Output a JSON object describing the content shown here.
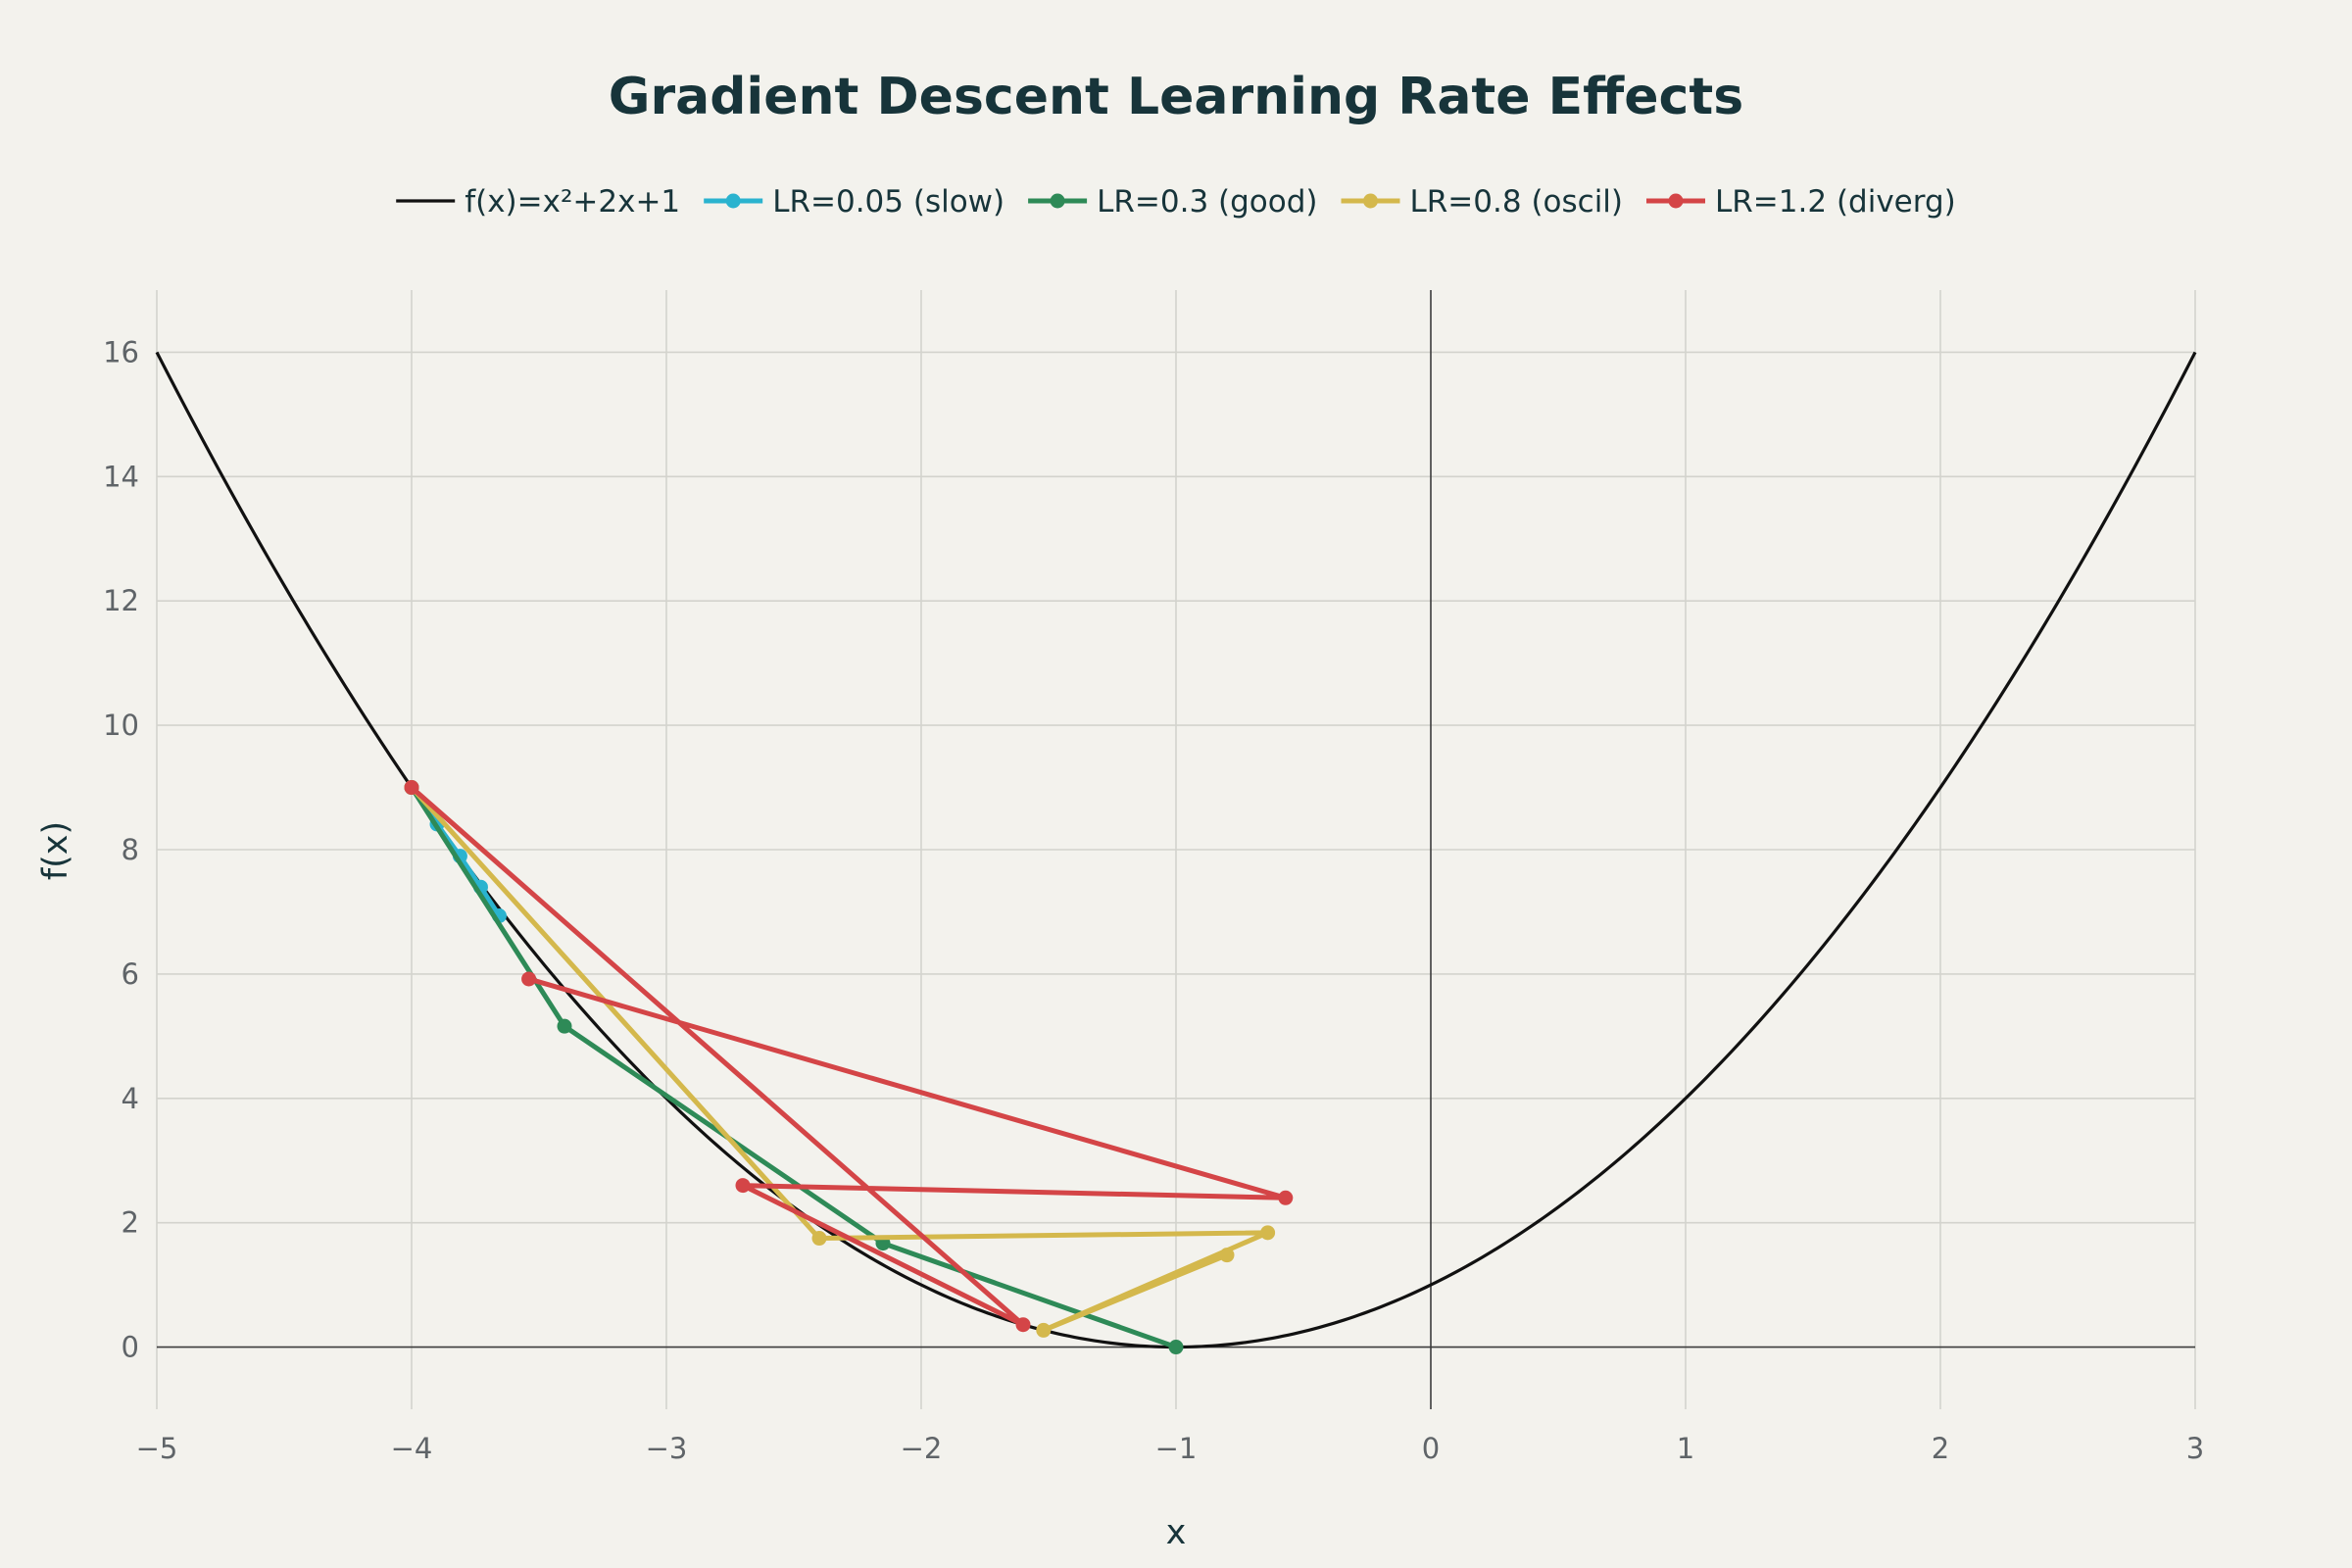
{
  "chart_data": {
    "type": "line",
    "title": "Gradient Descent Learning Rate Effects",
    "xlabel": "x",
    "ylabel": "f(x)",
    "xlim": [
      -5,
      3
    ],
    "ylim": [
      -1,
      17
    ],
    "x_ticks": [
      -5,
      -4,
      -3,
      -2,
      -1,
      0,
      1,
      2,
      3
    ],
    "x_tick_labels": [
      "−5",
      "−4",
      "−3",
      "−2",
      "−1",
      "0",
      "1",
      "2",
      "3"
    ],
    "y_ticks": [
      0,
      2,
      4,
      6,
      8,
      10,
      12,
      14,
      16
    ],
    "y_tick_labels": [
      "0",
      "2",
      "4",
      "6",
      "8",
      "10",
      "12",
      "14",
      "16"
    ],
    "grid": true,
    "legend_position": "top-center",
    "function": {
      "name": "f(x)=x²+2x+1",
      "color": "#111111",
      "x_range": [
        -5,
        3
      ]
    },
    "series": [
      {
        "name": "LR=0.05 (slow)",
        "color": "#2ab3cf",
        "x": [
          -4,
          -3.9,
          -3.81,
          -3.729,
          -3.656
        ],
        "y": [
          9,
          8.41,
          7.896,
          7.398,
          6.936
        ]
      },
      {
        "name": "LR=0.3 (good)",
        "color": "#2e8a57",
        "x": [
          -4,
          -3.4,
          -2.15,
          -1
        ],
        "y": [
          9,
          5.16,
          1.67,
          0
        ]
      },
      {
        "name": "LR=0.8 (oscil)",
        "color": "#d4b84c",
        "x": [
          -4,
          -2.4,
          -0.64,
          -1.52,
          -0.8
        ],
        "y": [
          9,
          1.75,
          1.84,
          0.27,
          1.48
        ]
      },
      {
        "name": "LR=1.2 (diverg)",
        "color": "#d44547",
        "x": [
          -4,
          -1.6,
          -2.7,
          -0.57,
          -3.54
        ],
        "y": [
          9,
          0.36,
          2.6,
          2.4,
          5.92
        ]
      }
    ]
  }
}
